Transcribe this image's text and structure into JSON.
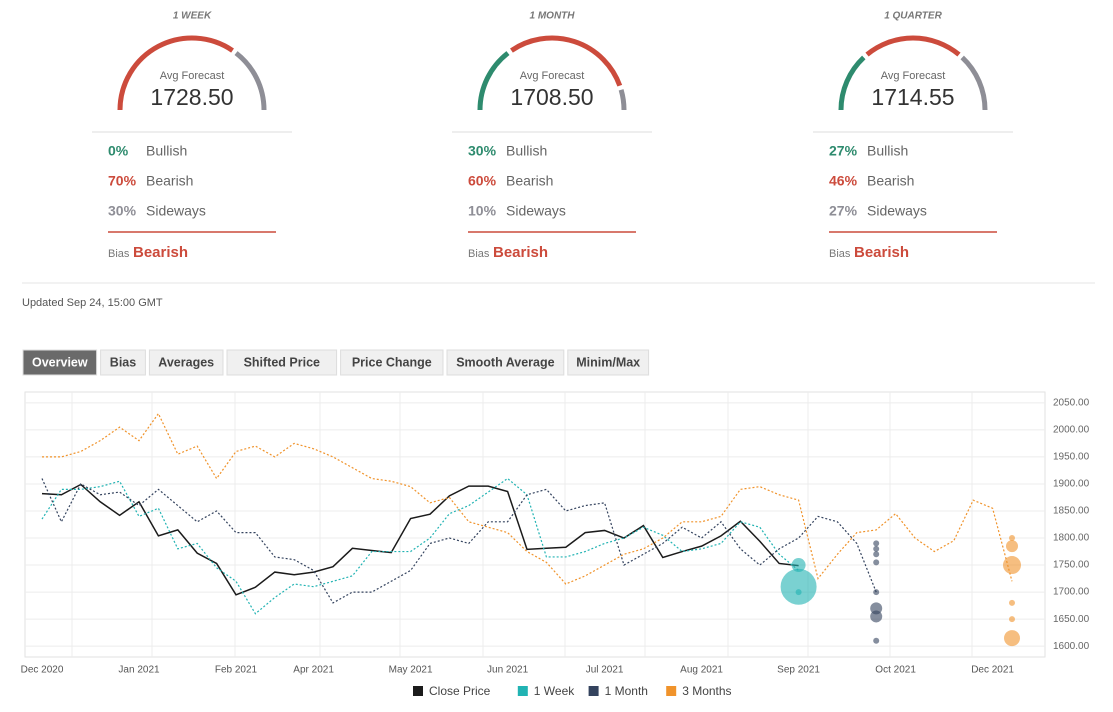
{
  "panels": [
    {
      "title": "1 WEEK",
      "avg_label": "Avg Forecast",
      "avg": "1728.50",
      "rows": [
        {
          "value": 0,
          "pct": "0%",
          "label": "Bullish"
        },
        {
          "value": 70,
          "pct": "70%",
          "label": "Bearish"
        },
        {
          "value": 30,
          "pct": "30%",
          "label": "Sideways"
        }
      ],
      "bias_label": "Bias",
      "bias": "Bearish"
    },
    {
      "title": "1 MONTH",
      "avg_label": "Avg Forecast",
      "avg": "1708.50",
      "rows": [
        {
          "value": 30,
          "pct": "30%",
          "label": "Bullish"
        },
        {
          "value": 60,
          "pct": "60%",
          "label": "Bearish"
        },
        {
          "value": 10,
          "pct": "10%",
          "label": "Sideways"
        }
      ],
      "bias_label": "Bias",
      "bias": "Bearish"
    },
    {
      "title": "1 QUARTER",
      "avg_label": "Avg Forecast",
      "avg": "1714.55",
      "rows": [
        {
          "value": 27,
          "pct": "27%",
          "label": "Bullish"
        },
        {
          "value": 46,
          "pct": "46%",
          "label": "Bearish"
        },
        {
          "value": 27,
          "pct": "27%",
          "label": "Sideways"
        }
      ],
      "bias_label": "Bias",
      "bias": "Bearish"
    }
  ],
  "updated": "Updated Sep 24, 15:00 GMT",
  "tabs": [
    "Overview",
    "Bias",
    "Averages",
    "Shifted Price",
    "Price Change",
    "Smooth Average",
    "Minim/Max"
  ],
  "chart_data": {
    "type": "line",
    "categories": [
      "Dec 2020",
      null,
      null,
      null,
      null,
      "Jan 2021",
      null,
      null,
      null,
      null,
      "Feb 2021",
      null,
      null,
      null,
      "Apr 2021",
      null,
      null,
      null,
      null,
      "May 2021",
      null,
      null,
      null,
      null,
      "Jun 2021",
      null,
      null,
      null,
      null,
      "Jul 2021",
      null,
      null,
      null,
      null,
      "Aug 2021",
      null,
      null,
      null,
      null,
      "Sep 2021",
      null,
      null,
      null,
      null,
      "Oct 2021",
      null,
      null,
      null,
      null,
      "Dec 2021",
      null
    ],
    "ylim": [
      1580,
      2070
    ],
    "yticks": [
      {
        "value": 1600,
        "label": "1600.00"
      },
      {
        "value": 1650,
        "label": "1650.00"
      },
      {
        "value": 1700,
        "label": "1700.00"
      },
      {
        "value": 1750,
        "label": "1750.00"
      },
      {
        "value": 1800,
        "label": "1800.00"
      },
      {
        "value": 1850,
        "label": "1850.00"
      },
      {
        "value": 1900,
        "label": "1900.00"
      },
      {
        "value": 1950,
        "label": "1950.00"
      },
      {
        "value": 2000,
        "label": "2000.00"
      },
      {
        "value": 2050,
        "label": "2050.00"
      }
    ],
    "grid": true,
    "series": [
      {
        "name": "Close Price",
        "color": "#1b1b1b",
        "dashed": false,
        "values": [
          1882,
          1880,
          1899,
          1867,
          1842,
          1867,
          1804,
          1815,
          1772,
          1753,
          1695,
          1709,
          1737,
          1732,
          1737,
          1747,
          1781,
          1777,
          1773,
          1836,
          1844,
          1878,
          1896,
          1896,
          1886,
          1779,
          1781,
          1783,
          1810,
          1814,
          1800,
          1823,
          1764,
          1775,
          1785,
          1804,
          1831,
          1794,
          1753,
          1749,
          null,
          null,
          null,
          null,
          null,
          null,
          null,
          null,
          null,
          null,
          null
        ]
      },
      {
        "name": "1 Week",
        "color": "#21b3b3",
        "dashed": true,
        "values": [
          1835,
          1890,
          1890,
          1895,
          1905,
          1840,
          1855,
          1780,
          1790,
          1745,
          1720,
          1660,
          1690,
          1715,
          1710,
          1720,
          1730,
          1775,
          1775,
          1775,
          1800,
          1845,
          1860,
          1885,
          1910,
          1880,
          1765,
          1765,
          1775,
          1790,
          1800,
          1820,
          1805,
          1775,
          1780,
          1790,
          1830,
          1820,
          1770,
          1740,
          null,
          null,
          null,
          null,
          null,
          null,
          null,
          null,
          null,
          null,
          null
        ],
        "forecast_index": 39,
        "forecast_values": [
          1750,
          1700,
          1710
        ],
        "forecast_sizes": [
          7,
          3,
          18
        ]
      },
      {
        "name": "1 Month",
        "color": "#34435e",
        "dashed": true,
        "values": [
          1910,
          1830,
          1900,
          1880,
          1885,
          1860,
          1890,
          1860,
          1830,
          1850,
          1810,
          1810,
          1765,
          1760,
          1740,
          1680,
          1700,
          1700,
          1720,
          1740,
          1790,
          1800,
          1790,
          1830,
          1830,
          1880,
          1890,
          1850,
          1860,
          1865,
          1750,
          1770,
          1790,
          1820,
          1800,
          1830,
          1780,
          1750,
          1780,
          1800,
          1840,
          1830,
          1790,
          1700,
          null,
          null,
          null,
          null,
          null,
          null,
          null
        ],
        "forecast_index": 43,
        "forecast_values": [
          1790,
          1780,
          1770,
          1755,
          1700,
          1670,
          1655,
          1610
        ],
        "forecast_sizes": [
          3,
          3,
          3,
          3,
          3,
          6,
          6,
          3
        ]
      },
      {
        "name": "3 Months",
        "color": "#f0932b",
        "dashed": true,
        "values": [
          1950,
          1950,
          1960,
          1980,
          2005,
          1980,
          2030,
          1955,
          1970,
          1910,
          1960,
          1970,
          1950,
          1975,
          1965,
          1950,
          1930,
          1910,
          1905,
          1895,
          1865,
          1875,
          1830,
          1820,
          1810,
          1775,
          1755,
          1715,
          1730,
          1750,
          1770,
          1780,
          1800,
          1830,
          1830,
          1840,
          1890,
          1895,
          1880,
          1870,
          1725,
          1770,
          1810,
          1815,
          1845,
          1800,
          1775,
          1795,
          1870,
          1855,
          1720
        ],
        "forecast_index": 50,
        "forecast_values": [
          1800,
          1785,
          1750,
          1680,
          1650,
          1615
        ],
        "forecast_sizes": [
          3,
          6,
          9,
          3,
          3,
          8
        ]
      }
    ]
  }
}
